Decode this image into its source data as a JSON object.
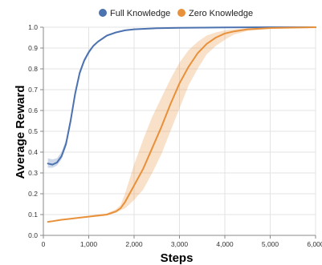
{
  "chart_data": {
    "type": "line",
    "xlabel": "Steps",
    "ylabel": "Average Reward",
    "xlim": [
      0,
      6000
    ],
    "ylim": [
      0,
      1.0
    ],
    "x_ticks": [
      0,
      1000,
      2000,
      3000,
      4000,
      5000,
      6000
    ],
    "x_tick_labels": [
      "0",
      "1,000",
      "2,000",
      "3,000",
      "4,000",
      "5,000",
      "6,000"
    ],
    "y_ticks": [
      0,
      0.1,
      0.2,
      0.3,
      0.4,
      0.5,
      0.6,
      0.7,
      0.8,
      0.9,
      1.0
    ],
    "y_tick_labels": [
      "0.0",
      "0.1",
      "0.2",
      "0.3",
      "0.4",
      "0.5",
      "0.6",
      "0.7",
      "0.8",
      "0.9",
      "1.0"
    ],
    "grid": true,
    "legend_position": "top-center",
    "series": [
      {
        "name": "Full Knowledge",
        "color": "#4c72b0",
        "x": [
          100,
          200,
          300,
          400,
          500,
          600,
          700,
          800,
          900,
          1000,
          1100,
          1200,
          1400,
          1600,
          1800,
          2000,
          2500,
          3000,
          3500,
          4000,
          5000,
          6000
        ],
        "y": [
          0.345,
          0.34,
          0.35,
          0.38,
          0.44,
          0.55,
          0.68,
          0.78,
          0.84,
          0.88,
          0.91,
          0.93,
          0.96,
          0.975,
          0.985,
          0.99,
          0.995,
          0.997,
          0.998,
          0.999,
          1.0,
          1.0
        ],
        "band_lower": [
          0.325,
          0.325,
          0.335,
          0.365,
          0.425,
          0.53,
          0.66,
          0.765,
          0.83,
          0.87,
          0.905,
          0.925,
          0.955,
          0.972,
          0.983,
          0.988,
          0.994,
          0.996,
          0.997,
          0.998,
          0.999,
          0.999
        ],
        "band_upper": [
          0.37,
          0.365,
          0.37,
          0.4,
          0.46,
          0.57,
          0.7,
          0.795,
          0.85,
          0.89,
          0.915,
          0.935,
          0.965,
          0.978,
          0.988,
          0.992,
          0.996,
          0.998,
          0.999,
          1.0,
          1.0,
          1.0
        ]
      },
      {
        "name": "Zero Knowledge",
        "color": "#e8913a",
        "x": [
          100,
          200,
          400,
          600,
          800,
          1000,
          1200,
          1400,
          1600,
          1700,
          1800,
          1900,
          2000,
          2200,
          2400,
          2600,
          2800,
          3000,
          3200,
          3400,
          3600,
          3800,
          4000,
          4200,
          4500,
          5000,
          5500,
          6000
        ],
        "y": [
          0.065,
          0.068,
          0.075,
          0.08,
          0.085,
          0.09,
          0.095,
          0.1,
          0.115,
          0.13,
          0.16,
          0.2,
          0.24,
          0.32,
          0.42,
          0.52,
          0.63,
          0.73,
          0.81,
          0.875,
          0.92,
          0.95,
          0.97,
          0.98,
          0.99,
          0.996,
          0.998,
          1.0
        ],
        "band_lower": [
          0.062,
          0.065,
          0.072,
          0.077,
          0.082,
          0.087,
          0.09,
          0.095,
          0.108,
          0.12,
          0.13,
          0.15,
          0.17,
          0.22,
          0.3,
          0.39,
          0.5,
          0.61,
          0.72,
          0.8,
          0.87,
          0.91,
          0.94,
          0.965,
          0.982,
          0.992,
          0.996,
          0.999
        ],
        "band_upper": [
          0.068,
          0.071,
          0.078,
          0.083,
          0.088,
          0.094,
          0.1,
          0.106,
          0.125,
          0.145,
          0.2,
          0.27,
          0.34,
          0.46,
          0.57,
          0.66,
          0.75,
          0.83,
          0.89,
          0.93,
          0.96,
          0.975,
          0.985,
          0.99,
          0.995,
          0.998,
          1.0,
          1.0
        ]
      }
    ]
  }
}
